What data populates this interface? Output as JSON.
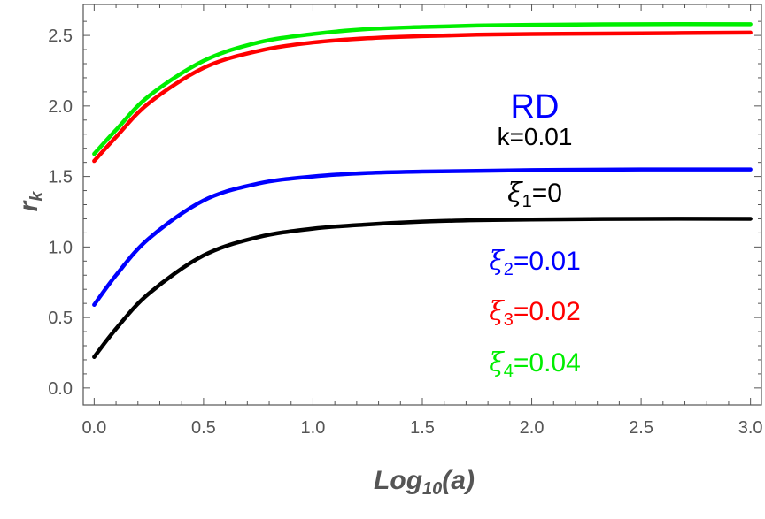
{
  "chart_data": {
    "type": "line",
    "xlabel": "Log10(a)",
    "ylabel": "r_k",
    "xlim": [
      -0.05,
      3.05
    ],
    "ylim": [
      -0.12,
      2.72
    ],
    "xticks": [
      "0.0",
      "0.5",
      "1.0",
      "1.5",
      "2.0",
      "2.5",
      "3.0"
    ],
    "yticks": [
      "0.0",
      "0.5",
      "1.0",
      "1.5",
      "2.0",
      "2.5"
    ],
    "grid": false,
    "frame": true,
    "annotations": {
      "title": "RD",
      "k_label": "k=0.01",
      "xi1": "=0",
      "xi2": "=0.01",
      "xi3": "=0.02",
      "xi4": "=0.04"
    },
    "series": [
      {
        "key": "xi1",
        "color": "#000000",
        "x": [
          0,
          0.1,
          0.25,
          0.5,
          0.75,
          1.0,
          1.25,
          1.5,
          1.75,
          2.0,
          2.5,
          3.0
        ],
        "y": [
          0.22,
          0.42,
          0.67,
          0.94,
          1.07,
          1.13,
          1.16,
          1.18,
          1.19,
          1.195,
          1.2,
          1.2
        ]
      },
      {
        "key": "xi2",
        "color": "#0000ff",
        "x": [
          0,
          0.1,
          0.25,
          0.5,
          0.75,
          1.0,
          1.25,
          1.5,
          1.75,
          2.0,
          2.5,
          3.0
        ],
        "y": [
          0.59,
          0.8,
          1.06,
          1.33,
          1.45,
          1.5,
          1.525,
          1.535,
          1.54,
          1.545,
          1.55,
          1.55
        ]
      },
      {
        "key": "xi3",
        "color": "#ff0000",
        "x": [
          0,
          0.1,
          0.25,
          0.5,
          0.75,
          1.0,
          1.25,
          1.5,
          1.75,
          2.0,
          2.5,
          3.0
        ],
        "y": [
          1.61,
          1.78,
          2.02,
          2.27,
          2.39,
          2.45,
          2.48,
          2.495,
          2.505,
          2.51,
          2.515,
          2.52
        ]
      },
      {
        "key": "xi4",
        "color": "#00ee00",
        "x": [
          0,
          0.1,
          0.25,
          0.5,
          0.75,
          1.0,
          1.25,
          1.5,
          1.75,
          2.0,
          2.5,
          3.0
        ],
        "y": [
          1.66,
          1.83,
          2.07,
          2.32,
          2.45,
          2.51,
          2.545,
          2.56,
          2.57,
          2.575,
          2.58,
          2.58
        ]
      }
    ]
  },
  "colors": {
    "axis": "#555555",
    "xi1": "#000000",
    "xi2": "#0000ff",
    "xi3": "#ff0000",
    "xi4": "#00ee00"
  }
}
